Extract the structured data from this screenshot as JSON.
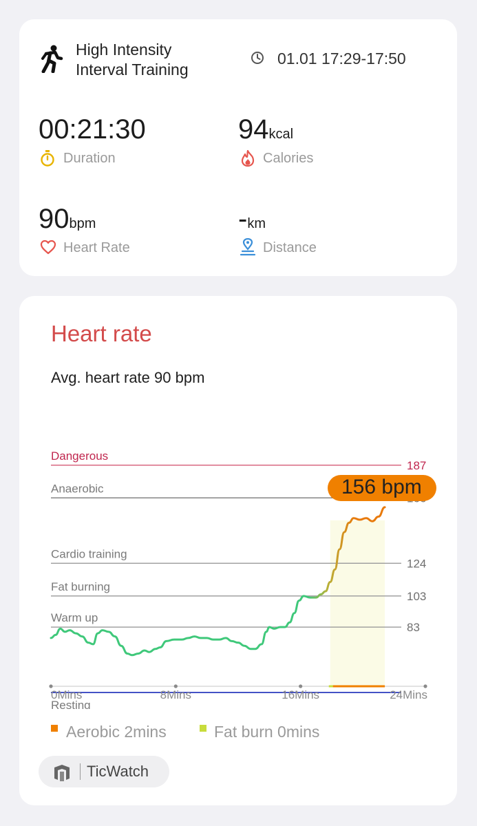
{
  "summary": {
    "workout_icon": "running-person-icon",
    "workout_title": "High Intensity Interval Training",
    "time_icon": "clock-icon",
    "time_range": "01.01 17:29-17:50",
    "duration": {
      "value": "00:21:30",
      "label": "Duration",
      "icon": "stopwatch-icon"
    },
    "calories": {
      "value": "94",
      "unit": "kcal",
      "label": "Calories",
      "icon": "flame-icon"
    },
    "heart_rate": {
      "value": "90",
      "unit": "bpm",
      "label": "Heart Rate",
      "icon": "heart-icon"
    },
    "distance": {
      "value": "-",
      "unit": "km",
      "label": "Distance",
      "icon": "location-pin-icon"
    }
  },
  "heart_rate_card": {
    "title": "Heart rate",
    "average_text": "Avg. heart rate 90 bpm",
    "tooltip": "156 bpm",
    "legend": [
      {
        "label": "Aerobic 2mins",
        "color": "#f08000"
      },
      {
        "label": "Fat burn 0mins",
        "color": "#c8dc3c"
      }
    ],
    "brand": {
      "icon": "ticwatch-logo-icon",
      "name": "TicWatch"
    }
  },
  "chart_data": {
    "type": "line",
    "title": "Heart rate",
    "xlabel": "",
    "ylabel": "",
    "x_ticks": [
      "0Mins",
      "8Mins",
      "16Mins",
      "24Mins"
    ],
    "xlim": [
      0,
      24
    ],
    "ylim": [
      45,
      194
    ],
    "zones": [
      {
        "name": "Dangerous",
        "threshold": 187,
        "threshold_label": "187",
        "color": "#d45a74"
      },
      {
        "name": "Anaerobic",
        "threshold": 166,
        "threshold_label": "166",
        "color": "#7a7a7a"
      },
      {
        "name": "Cardio training",
        "threshold": 124,
        "threshold_label": "124",
        "color": "#9a9a9a"
      },
      {
        "name": "Fat burning",
        "threshold": 103,
        "threshold_label": "103",
        "color": "#9a9a9a"
      },
      {
        "name": "Warm up",
        "threshold": 83,
        "threshold_label": "83",
        "color": "#9a9a9a"
      },
      {
        "name": "Resting",
        "threshold": 41,
        "threshold_label": "",
        "color": "#1a2ab8"
      }
    ],
    "highlight_range": [
      17.9,
      21.4
    ],
    "highlight_value": 156,
    "series": [
      {
        "values": [
          [
            0.0,
            76
          ],
          [
            0.3,
            78
          ],
          [
            0.6,
            82
          ],
          [
            0.9,
            80
          ],
          [
            1.2,
            81
          ],
          [
            1.6,
            79
          ],
          [
            2.0,
            77
          ],
          [
            2.4,
            73
          ],
          [
            2.7,
            72
          ],
          [
            3.0,
            79
          ],
          [
            3.3,
            81
          ],
          [
            3.7,
            80
          ],
          [
            4.1,
            77
          ],
          [
            4.5,
            71
          ],
          [
            4.9,
            66
          ],
          [
            5.2,
            65
          ],
          [
            5.6,
            66
          ],
          [
            6.0,
            68
          ],
          [
            6.3,
            67
          ],
          [
            6.7,
            69
          ],
          [
            7.0,
            70
          ],
          [
            7.4,
            74
          ],
          [
            7.9,
            75
          ],
          [
            8.4,
            75
          ],
          [
            8.8,
            76
          ],
          [
            9.2,
            77
          ],
          [
            9.6,
            76
          ],
          [
            10.0,
            76
          ],
          [
            10.4,
            75
          ],
          [
            10.8,
            75
          ],
          [
            11.2,
            76
          ],
          [
            11.6,
            74
          ],
          [
            12.0,
            73
          ],
          [
            12.4,
            71
          ],
          [
            12.8,
            69
          ],
          [
            13.1,
            69
          ],
          [
            13.5,
            72
          ],
          [
            13.8,
            80
          ],
          [
            14.0,
            83
          ],
          [
            14.3,
            82
          ],
          [
            14.7,
            83
          ],
          [
            15.0,
            83
          ],
          [
            15.3,
            86
          ],
          [
            15.6,
            92
          ],
          [
            15.9,
            100
          ],
          [
            16.2,
            103
          ],
          [
            16.6,
            102
          ],
          [
            17.0,
            102
          ],
          [
            17.3,
            104
          ],
          [
            17.6,
            106
          ],
          [
            17.9,
            112
          ],
          [
            18.2,
            120
          ],
          [
            18.5,
            133
          ],
          [
            18.8,
            144
          ],
          [
            19.1,
            150
          ],
          [
            19.4,
            153
          ],
          [
            19.8,
            152
          ],
          [
            20.2,
            153
          ],
          [
            20.6,
            151
          ],
          [
            21.0,
            154
          ],
          [
            21.4,
            160
          ]
        ]
      }
    ]
  }
}
